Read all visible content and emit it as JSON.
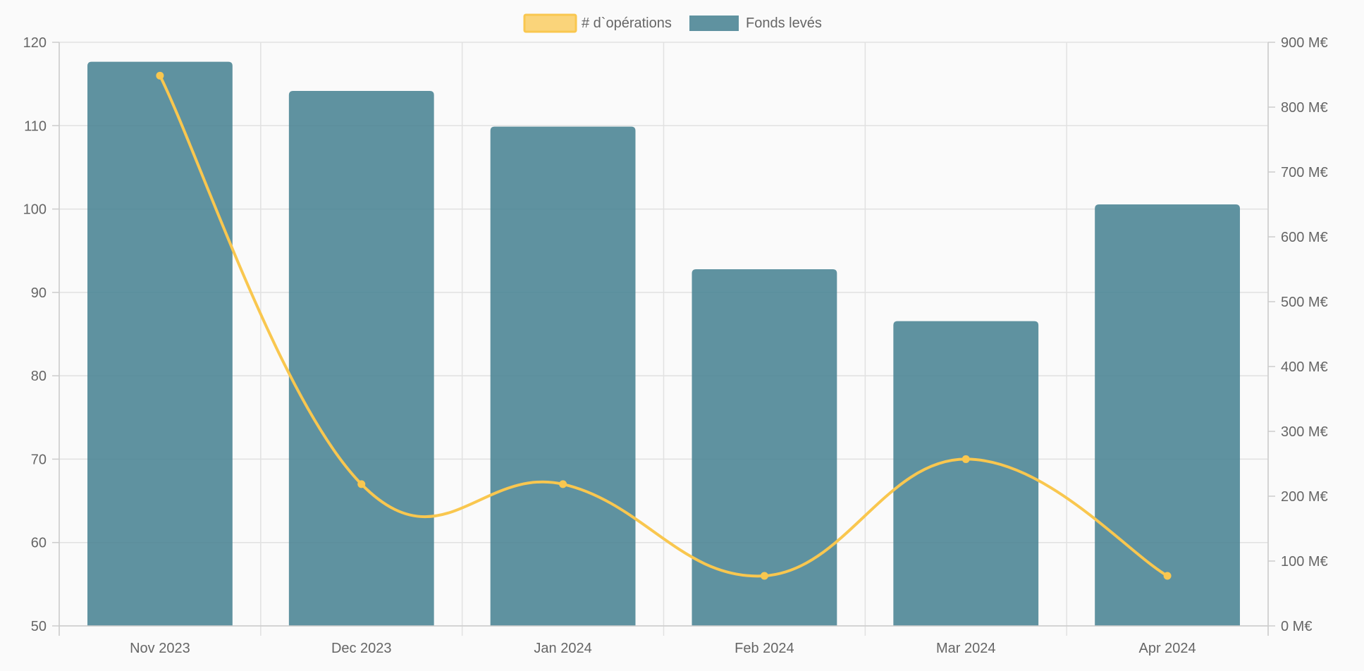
{
  "chart_data": {
    "type": "bar",
    "categories": [
      "Nov 2023",
      "Dec 2023",
      "Jan 2024",
      "Feb 2024",
      "Mar 2024",
      "Apr 2024"
    ],
    "series": [
      {
        "name": "# d`opérations",
        "type": "line",
        "axis": "left",
        "color": "#f9c74f",
        "values": [
          116,
          67,
          67,
          56,
          70,
          56
        ]
      },
      {
        "name": "Fonds levés",
        "type": "bar",
        "axis": "right",
        "color": "#4e8696",
        "values": [
          870,
          825,
          770,
          550,
          470,
          650
        ]
      }
    ],
    "y_left": {
      "min": 50,
      "max": 120,
      "ticks": [
        "50",
        "60",
        "70",
        "80",
        "90",
        "100",
        "110",
        "120"
      ]
    },
    "y_right": {
      "min": 0,
      "max": 900,
      "ticks": [
        "0 M€",
        "100 M€",
        "200 M€",
        "300 M€",
        "400 M€",
        "500 M€",
        "600 M€",
        "700 M€",
        "800 M€",
        "900 M€"
      ]
    },
    "grid": true,
    "legend": "top-center",
    "title": "",
    "xlabel": "",
    "ylabel": ""
  }
}
